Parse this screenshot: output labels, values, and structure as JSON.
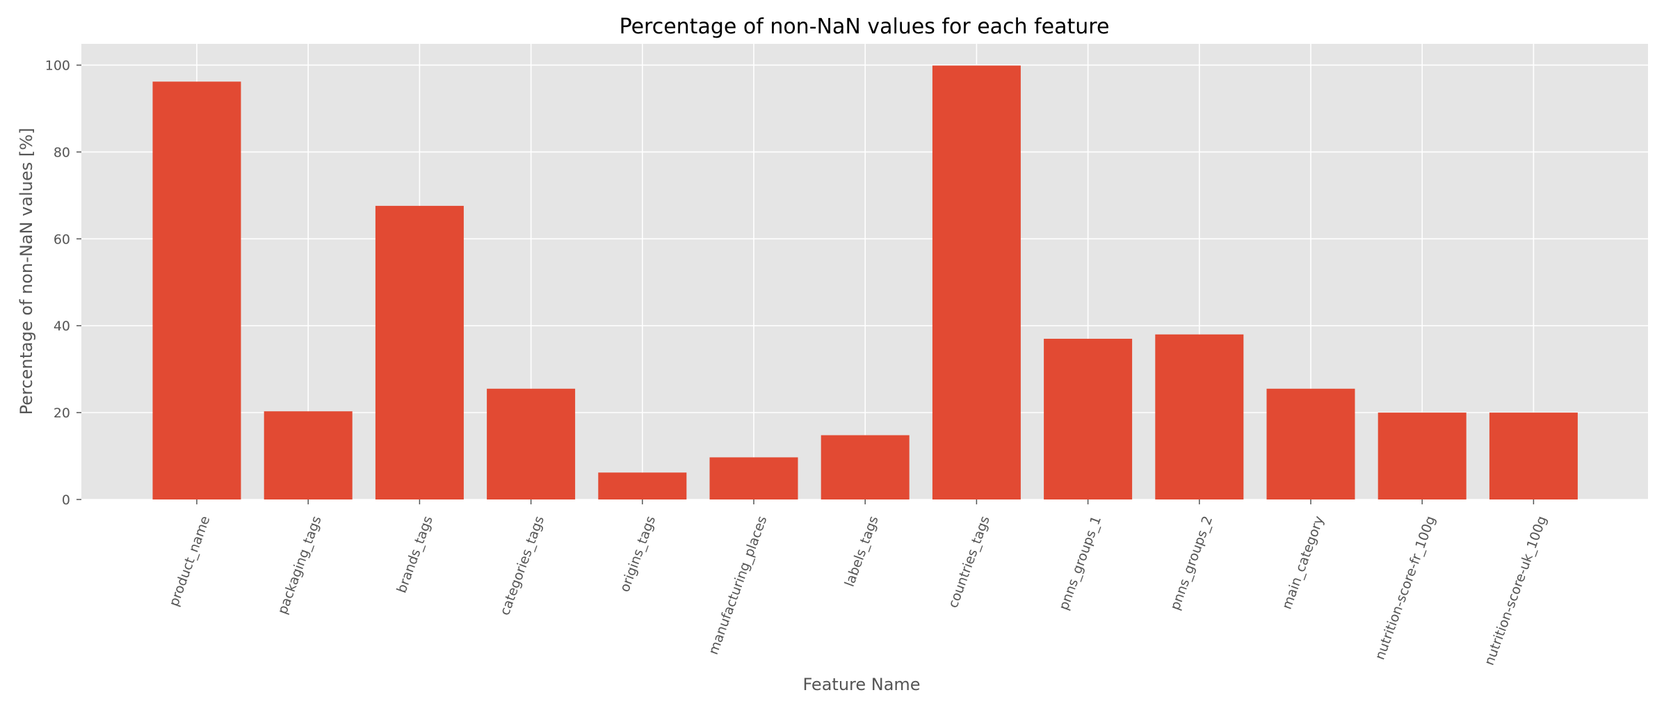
{
  "chart_data": {
    "type": "bar",
    "title": "Percentage of non-NaN values for each feature",
    "xlabel": "Feature Name",
    "ylabel": "Percentage of non-NaN values [%]",
    "categories": [
      "product_name",
      "packaging_tags",
      "brands_tags",
      "categories_tags",
      "origins_tags",
      "manufacturing_places",
      "labels_tags",
      "countries_tags",
      "pnns_groups_1",
      "pnns_groups_2",
      "main_category",
      "nutrition-score-fr_100g",
      "nutrition-score-uk_100g"
    ],
    "values": [
      96.2,
      20.3,
      67.6,
      25.5,
      6.2,
      9.7,
      14.8,
      99.9,
      37.0,
      38.0,
      25.5,
      20.0,
      20.0
    ],
    "yticks": [
      "0",
      "20",
      "40",
      "60",
      "80",
      "100"
    ],
    "ylim": [
      0,
      104.9
    ],
    "grid": true,
    "bar_color": "#E24A33",
    "background_color": "#E5E5E5"
  }
}
